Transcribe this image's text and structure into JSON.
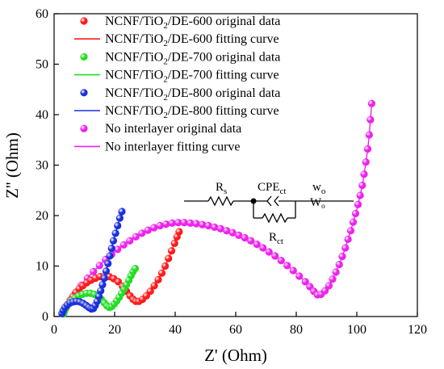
{
  "chart_data": {
    "type": "scatter",
    "title": "",
    "xlabel": "Z' (Ohm)",
    "ylabel": "Z'' (Ohm)",
    "xlim": [
      0,
      120
    ],
    "ylim": [
      0,
      60
    ],
    "xticks": [
      0,
      20,
      40,
      60,
      80,
      100,
      120
    ],
    "yticks": [
      0,
      10,
      20,
      30,
      40,
      50,
      60
    ],
    "grid": false,
    "legend_position": "top-left",
    "series": [
      {
        "name": "NCNF/TiO₂/DE-600",
        "color": "#ff1a1a",
        "original_label": "NCNF/TiO₂/DE-600 original data",
        "fit_label": "NCNF/TiO₂/DE-600 fitting curve",
        "points": [
          [
            3.2,
            0.7
          ],
          [
            3.8,
            1.6
          ],
          [
            4.5,
            2.4
          ],
          [
            5.3,
            3.2
          ],
          [
            6.2,
            4.0
          ],
          [
            7.2,
            4.8
          ],
          [
            8.3,
            5.5
          ],
          [
            9.5,
            6.1
          ],
          [
            10.8,
            6.7
          ],
          [
            12.2,
            7.2
          ],
          [
            13.7,
            7.6
          ],
          [
            15.2,
            7.9
          ],
          [
            16.7,
            8.0
          ],
          [
            18.2,
            7.9
          ],
          [
            19.7,
            7.5
          ],
          [
            21.2,
            6.9
          ],
          [
            22.6,
            6.0
          ],
          [
            23.9,
            5.0
          ],
          [
            25.1,
            4.1
          ],
          [
            26.1,
            3.4
          ],
          [
            27.0,
            3.0
          ],
          [
            28.0,
            3.0
          ],
          [
            29.2,
            3.4
          ],
          [
            30.5,
            4.1
          ],
          [
            31.8,
            5.0
          ],
          [
            33.1,
            6.1
          ],
          [
            34.4,
            7.3
          ],
          [
            35.6,
            8.6
          ],
          [
            36.7,
            10.0
          ],
          [
            37.8,
            11.5
          ],
          [
            38.8,
            13.0
          ],
          [
            39.8,
            14.5
          ],
          [
            40.6,
            15.8
          ],
          [
            41.3,
            16.8
          ]
        ]
      },
      {
        "name": "NCNF/TiO₂/DE-700",
        "color": "#22dd22",
        "original_label": "NCNF/TiO₂/DE-700 original data",
        "fit_label": "NCNF/TiO₂/DE-700 fitting curve",
        "points": [
          [
            3.0,
            0.5
          ],
          [
            3.5,
            1.2
          ],
          [
            4.1,
            1.9
          ],
          [
            4.9,
            2.6
          ],
          [
            5.8,
            3.2
          ],
          [
            6.9,
            3.7
          ],
          [
            8.1,
            4.1
          ],
          [
            9.4,
            4.4
          ],
          [
            10.7,
            4.6
          ],
          [
            12.0,
            4.6
          ],
          [
            13.3,
            4.4
          ],
          [
            14.5,
            4.0
          ],
          [
            15.6,
            3.4
          ],
          [
            16.6,
            2.7
          ],
          [
            17.5,
            2.1
          ],
          [
            18.3,
            1.8
          ],
          [
            19.1,
            2.0
          ],
          [
            19.9,
            2.5
          ],
          [
            20.7,
            3.1
          ],
          [
            21.5,
            3.8
          ],
          [
            22.3,
            4.6
          ],
          [
            23.1,
            5.4
          ],
          [
            23.9,
            6.3
          ],
          [
            24.7,
            7.2
          ],
          [
            25.4,
            8.1
          ],
          [
            26.1,
            8.9
          ],
          [
            26.8,
            9.5
          ]
        ]
      },
      {
        "name": "NCNF/TiO₂/DE-800",
        "color": "#1a2fdd",
        "original_label": "NCNF/TiO₂/DE-800 original data",
        "fit_label": "NCNF/TiO₂/DE-800 fitting curve",
        "points": [
          [
            2.6,
            0.6
          ],
          [
            3.0,
            1.2
          ],
          [
            3.6,
            1.8
          ],
          [
            4.4,
            2.3
          ],
          [
            5.3,
            2.7
          ],
          [
            6.3,
            2.9
          ],
          [
            7.4,
            3.0
          ],
          [
            8.5,
            2.9
          ],
          [
            9.6,
            2.6
          ],
          [
            10.6,
            2.2
          ],
          [
            11.5,
            1.8
          ],
          [
            12.3,
            1.5
          ],
          [
            13.0,
            1.6
          ],
          [
            13.6,
            2.2
          ],
          [
            14.2,
            3.0
          ],
          [
            14.8,
            4.0
          ],
          [
            15.4,
            5.1
          ],
          [
            16.0,
            6.3
          ],
          [
            16.6,
            7.6
          ],
          [
            17.2,
            9.0
          ],
          [
            17.8,
            10.5
          ],
          [
            18.4,
            12.0
          ],
          [
            19.0,
            13.5
          ],
          [
            19.6,
            15.0
          ],
          [
            20.3,
            16.5
          ],
          [
            21.0,
            18.0
          ],
          [
            21.7,
            19.5
          ],
          [
            22.4,
            20.8
          ]
        ]
      },
      {
        "name": "No interlayer",
        "color": "#ee22ee",
        "original_label": "No interlayer original data",
        "fit_label": "No interlayer fitting curve",
        "points": [
          [
            3.0,
            1.0
          ],
          [
            4.0,
            2.0
          ],
          [
            5.5,
            3.3
          ],
          [
            7.0,
            4.6
          ],
          [
            9.0,
            6.2
          ],
          [
            11.0,
            7.6
          ],
          [
            13.0,
            8.9
          ],
          [
            15.0,
            10.1
          ],
          [
            17.0,
            11.3
          ],
          [
            19.0,
            12.3
          ],
          [
            21.0,
            13.3
          ],
          [
            23.0,
            14.2
          ],
          [
            25.0,
            15.0
          ],
          [
            27.0,
            15.8
          ],
          [
            29.0,
            16.5
          ],
          [
            31.0,
            17.1
          ],
          [
            33.0,
            17.6
          ],
          [
            35.0,
            18.0
          ],
          [
            37.0,
            18.3
          ],
          [
            39.0,
            18.5
          ],
          [
            41.0,
            18.6
          ],
          [
            43.0,
            18.6
          ],
          [
            45.0,
            18.5
          ],
          [
            47.0,
            18.4
          ],
          [
            49.0,
            18.2
          ],
          [
            51.0,
            18.0
          ],
          [
            53.0,
            17.7
          ],
          [
            55.0,
            17.4
          ],
          [
            57.0,
            17.0
          ],
          [
            59.0,
            16.6
          ],
          [
            61.0,
            16.1
          ],
          [
            63.0,
            15.6
          ],
          [
            65.0,
            15.0
          ],
          [
            67.0,
            14.3
          ],
          [
            69.0,
            13.6
          ],
          [
            71.0,
            12.8
          ],
          [
            73.0,
            12.0
          ],
          [
            75.0,
            11.1
          ],
          [
            77.0,
            10.1
          ],
          [
            79.0,
            9.1
          ],
          [
            81.0,
            8.0
          ],
          [
            83.0,
            6.9
          ],
          [
            84.5,
            5.9
          ],
          [
            85.8,
            5.0
          ],
          [
            87.0,
            4.3
          ],
          [
            88.2,
            4.4
          ],
          [
            89.5,
            5.1
          ],
          [
            90.8,
            6.1
          ],
          [
            92.0,
            7.4
          ],
          [
            93.1,
            8.8
          ],
          [
            94.2,
            10.3
          ],
          [
            95.2,
            11.9
          ],
          [
            96.2,
            13.6
          ],
          [
            97.1,
            15.3
          ],
          [
            98.0,
            17.0
          ],
          [
            98.8,
            18.7
          ],
          [
            99.6,
            20.4
          ],
          [
            100.4,
            22.2
          ],
          [
            101.1,
            24.0
          ],
          [
            101.8,
            26.0
          ],
          [
            102.4,
            28.2
          ],
          [
            103.0,
            30.6
          ],
          [
            103.6,
            33.2
          ],
          [
            104.1,
            36.0
          ],
          [
            104.5,
            39.0
          ],
          [
            104.9,
            42.2
          ]
        ]
      }
    ],
    "inset_circuit": {
      "rs": "R",
      "rs_sub": "s",
      "cpe": "CPE",
      "cpe_sub": "ct",
      "wo": "w",
      "wo_sub": "o",
      "rct": "R",
      "rct_sub": "ct",
      "wo_symbol": "W",
      "wo_symbol_sub": "o"
    }
  }
}
